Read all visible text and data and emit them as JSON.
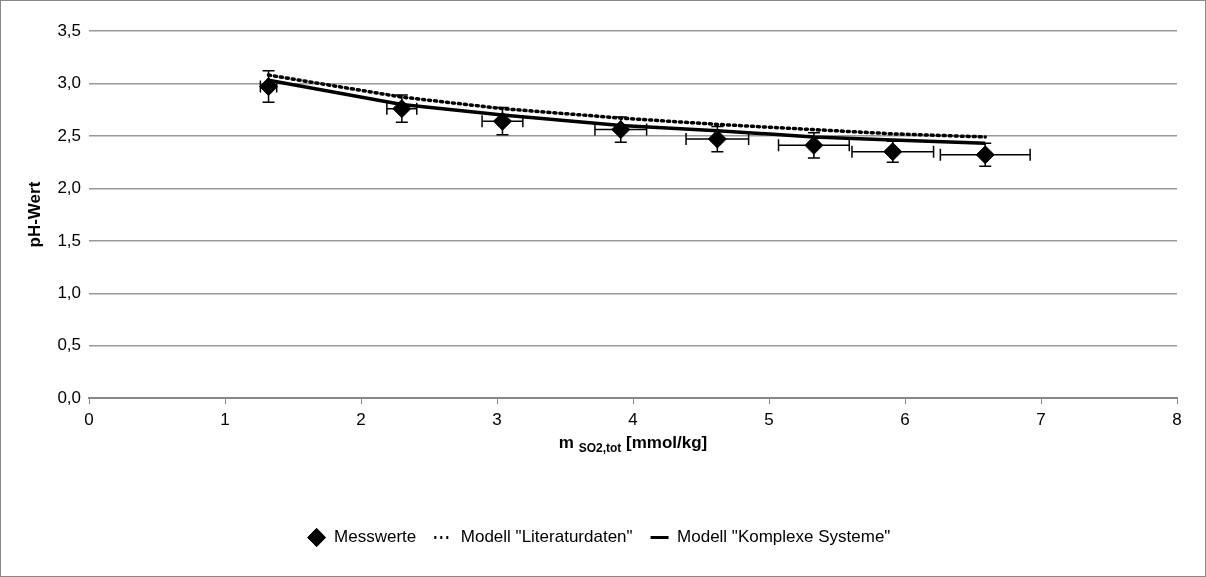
{
  "chart_data": {
    "type": "scatter",
    "xlabel": "m $_{SO2,tot}$ [mmol/kg]",
    "ylabel": "pH-Wert",
    "xlim": [
      0,
      8
    ],
    "xticks": [
      0,
      1,
      2,
      3,
      4,
      5,
      6,
      7,
      8
    ],
    "ylim": [
      0,
      3.5
    ],
    "yticks": [
      {
        "value": 0,
        "label": "0,0"
      },
      {
        "value": 0.5,
        "label": "0,5"
      },
      {
        "value": 1,
        "label": "1,0"
      },
      {
        "value": 1.5,
        "label": "1,5"
      },
      {
        "value": 2,
        "label": "2,0"
      },
      {
        "value": 2.5,
        "label": "2,5"
      },
      {
        "value": 3,
        "label": "3,0"
      },
      {
        "value": 3.5,
        "label": "3,5"
      }
    ],
    "grid": "y",
    "legend": "bottom",
    "series": [
      {
        "name": "Messwerte",
        "marker": "diamond",
        "color": "#000000",
        "x": [
          1.32,
          2.3,
          3.04,
          3.91,
          4.62,
          5.33,
          5.91,
          6.59
        ],
        "values": [
          2.97,
          2.76,
          2.64,
          2.56,
          2.47,
          2.41,
          2.35,
          2.32
        ],
        "errors": [
          0.15,
          0.13,
          0.13,
          0.12,
          0.12,
          0.12,
          0.1,
          0.11
        ],
        "xerrors": [
          0.06,
          0.11,
          0.15,
          0.19,
          0.23,
          0.26,
          0.3,
          0.33
        ]
      },
      {
        "name": "Modell \"Literaturdaten\"",
        "type": "line",
        "marker": "none",
        "line_style": "dotted",
        "color": "#000000",
        "x": [
          1.32,
          2.3,
          3.04,
          3.91,
          4.62,
          5.33,
          5.91,
          6.59
        ],
        "values": [
          3.08,
          2.87,
          2.76,
          2.67,
          2.61,
          2.56,
          2.52,
          2.49
        ]
      },
      {
        "name": "Modell \"Komplexe Systeme\"",
        "type": "line",
        "marker": "none",
        "line_style": "solid",
        "color": "#000000",
        "x": [
          1.32,
          2.3,
          3.04,
          3.91,
          4.62,
          5.33,
          5.91,
          6.59
        ],
        "values": [
          3.03,
          2.8,
          2.7,
          2.6,
          2.55,
          2.49,
          2.46,
          2.43
        ]
      }
    ]
  }
}
